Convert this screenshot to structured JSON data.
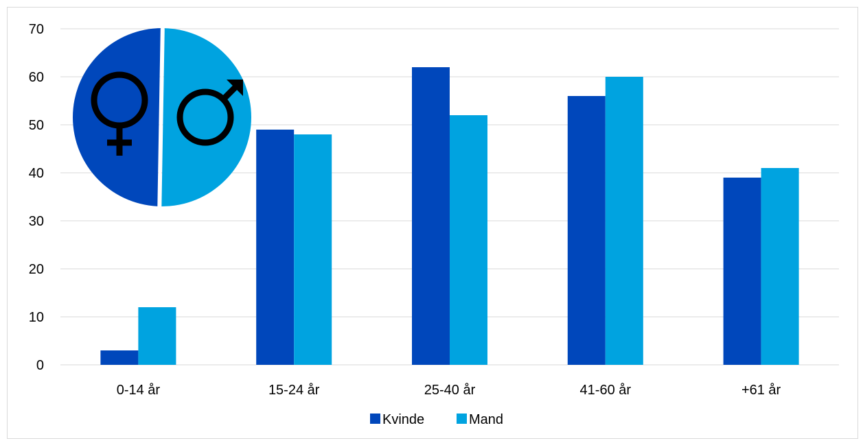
{
  "chart_data": {
    "type": "bar",
    "categories": [
      "0-14 år",
      "15-24 år",
      "25-40 år",
      "41-60 år",
      "+61 år"
    ],
    "series": [
      {
        "name": "Kvinde",
        "color": "#0047bb",
        "values": [
          3,
          49,
          62,
          56,
          39
        ]
      },
      {
        "name": "Mand",
        "color": "#00a3e0",
        "values": [
          12,
          48,
          52,
          60,
          41
        ]
      }
    ],
    "title": "",
    "xlabel": "",
    "ylabel": "",
    "ylim": [
      0,
      70
    ],
    "y_ticks": [
      0,
      10,
      20,
      30,
      40,
      50,
      60,
      70
    ],
    "grid": true,
    "legend_position": "bottom",
    "gridline_color": "#d9d9d9",
    "decoration": {
      "type": "gender-symbols-circle",
      "left_color": "#0047bb",
      "right_color": "#00a3e0",
      "icons": [
        "female-symbol-icon",
        "male-symbol-icon"
      ]
    }
  }
}
